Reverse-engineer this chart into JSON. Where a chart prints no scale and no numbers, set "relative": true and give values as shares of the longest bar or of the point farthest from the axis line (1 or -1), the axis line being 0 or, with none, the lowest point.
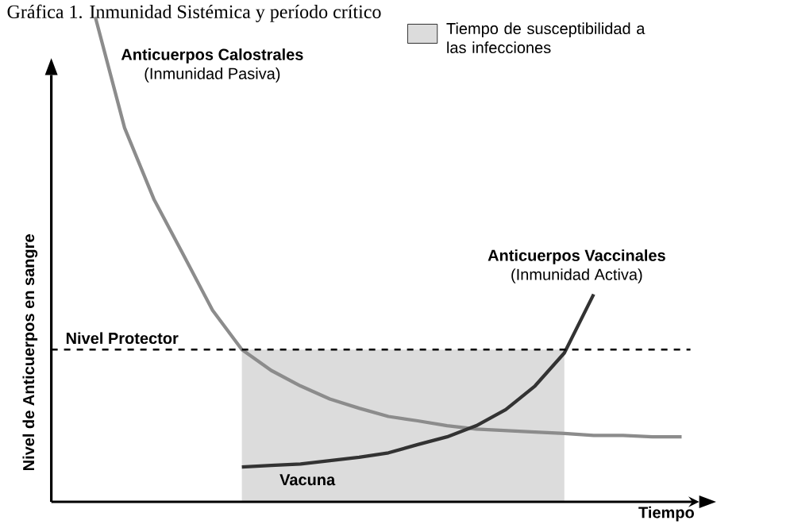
{
  "chart_data": {
    "type": "line",
    "title": "Gráfica 1. Inmunidad Sistémica y período crítico",
    "xlabel": "Tiempo",
    "ylabel": "Nivel de Anticuerpos en sangre",
    "relative": true,
    "categories": [
      null,
      null,
      null,
      null,
      null,
      null,
      null,
      null,
      null,
      null,
      null,
      null,
      null,
      null,
      null,
      null,
      null,
      null,
      null,
      null,
      null
    ],
    "series": [
      {
        "name": "Anticuerpos Calostrales",
        "color": "#8c8c8c",
        "values": [
          1.0,
          0.771,
          0.624,
          0.51,
          0.395,
          0.314,
          0.271,
          0.239,
          0.212,
          0.193,
          0.176,
          0.167,
          0.157,
          0.15,
          0.147,
          0.144,
          0.141,
          0.137,
          0.137,
          0.134,
          0.134
        ]
      },
      {
        "name": "Anticuerpos Vaccinales",
        "color": "#333333",
        "values": [
          null,
          null,
          null,
          null,
          null,
          0.072,
          0.075,
          0.078,
          0.085,
          0.092,
          0.101,
          0.118,
          0.134,
          0.157,
          0.19,
          0.239,
          0.307,
          0.428,
          null,
          null,
          null
        ]
      }
    ],
    "ref_lines": [
      {
        "axis": "y",
        "value": 0.314,
        "label": "Nivel Protector",
        "line_style": "dashed",
        "color": "#000000"
      }
    ],
    "annotations": [
      "(Inmunidad Pasiva)",
      "(Inmunidad Activa)",
      "Vacuna",
      "Tiempo de susceptibilidad a las infecciones"
    ],
    "line_style": "solid",
    "marker": "none"
  }
}
